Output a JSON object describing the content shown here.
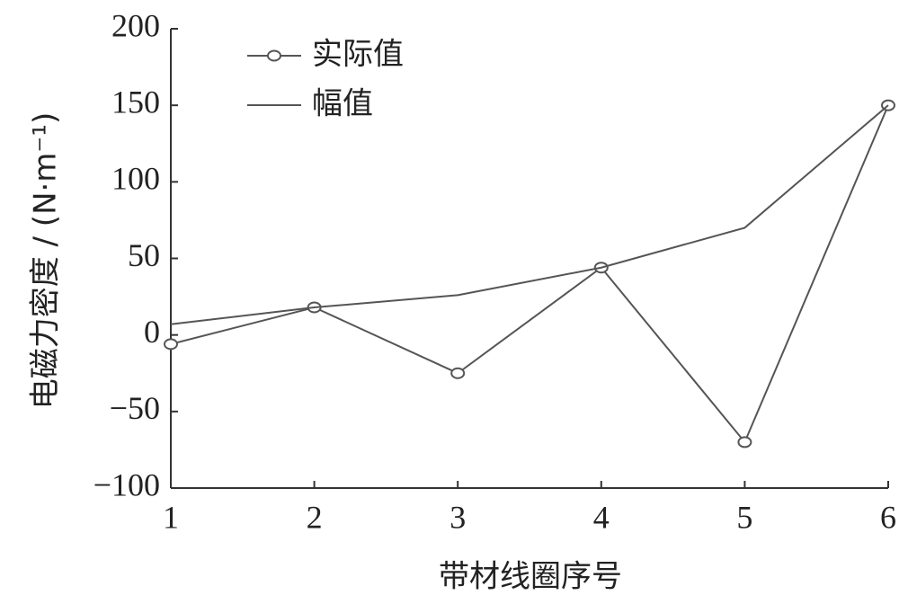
{
  "chart_data": {
    "type": "line",
    "x": [
      1,
      2,
      3,
      4,
      5,
      6
    ],
    "xlim": [
      1,
      6
    ],
    "xticks": [
      1,
      2,
      3,
      4,
      5,
      6
    ],
    "ylim": [
      -100,
      200
    ],
    "yticks": [
      {
        "value": -100,
        "label": "−100"
      },
      {
        "value": -50,
        "label": "−50"
      },
      0,
      50,
      100,
      150,
      200
    ],
    "x_label": "带材线圈序号",
    "y_label": "电磁力密度 / (N·m⁻¹)",
    "grid": false,
    "legend": "upper left",
    "series": [
      {
        "name": "实际值",
        "color": "#555555",
        "marker": "circle",
        "values": [
          -6,
          18,
          -25,
          44,
          -70,
          150
        ]
      },
      {
        "name": "幅值",
        "color": "#555555",
        "marker": "none",
        "values": [
          7,
          18,
          26,
          44,
          70,
          150
        ]
      }
    ]
  }
}
